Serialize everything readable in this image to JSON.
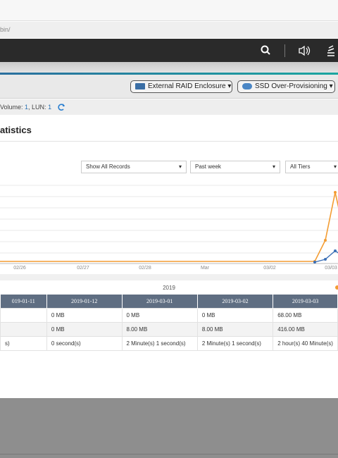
{
  "browser": {
    "url": "bin/"
  },
  "toolbar": {
    "buttons": [
      "External RAID Enclosure",
      "SSD Over-Provisioning"
    ]
  },
  "info": {
    "label": "Volume: ",
    "volume": "1",
    "sep": ", LUN: ",
    "lun": "1"
  },
  "panel": {
    "title": "atistics",
    "filters": [
      "Show All Records",
      "Past week",
      "All Tiers"
    ],
    "x_labels": [
      "02/26",
      "02/27",
      "02/28",
      "Mar",
      "03/02",
      "03/03"
    ],
    "year": "2019"
  },
  "table": {
    "headers": [
      "019-01-11",
      "2019-01-12",
      "2019-03-01",
      "2019-03-02",
      "2019-03-03"
    ],
    "rows": [
      [
        "",
        "0 MB",
        "0 MB",
        "0 MB",
        "68.00 MB"
      ],
      [
        "",
        "0 MB",
        "8.00 MB",
        "8.00 MB",
        "416.00 MB"
      ],
      [
        "s)",
        "0 second(s)",
        "2 Minute(s) 1 second(s)",
        "2 Minute(s) 1 second(s)",
        "2 hour(s) 40 Minute(s)"
      ]
    ]
  }
}
